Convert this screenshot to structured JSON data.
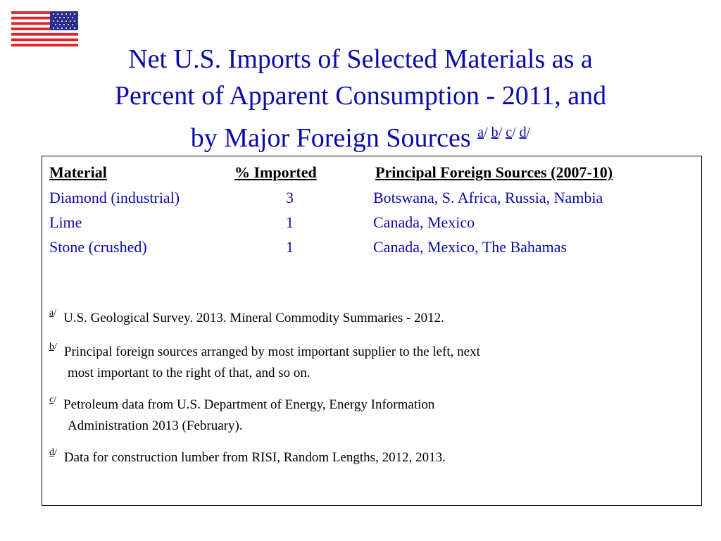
{
  "colors": {
    "title": "#0a0aa8",
    "flag_red": "#d8262c",
    "flag_blue": "#2a2f8f"
  },
  "title": {
    "line1": "Net U.S. Imports of Selected Materials as a",
    "line2": "Percent of Apparent Consumption - 2011, and",
    "line3": "by Major Foreign Sources",
    "footnote_refs": [
      "a",
      "b",
      "c",
      "d"
    ]
  },
  "table": {
    "headers": {
      "material": "Material",
      "imported": "% Imported",
      "sources": "Principal Foreign Sources (2007-10)"
    },
    "rows": [
      {
        "material": "Diamond (industrial)",
        "imported": "3",
        "sources": "Botswana, S. Africa, Russia, Nambia"
      },
      {
        "material": "Lime",
        "imported": "1",
        "sources": "Canada, Mexico"
      },
      {
        "material": "Stone (crushed)",
        "imported": "1",
        "sources": "Canada, Mexico, The Bahamas"
      }
    ]
  },
  "notes": [
    {
      "mark": "a",
      "line1": "U.S. Geological Survey. 2013.  Mineral Commodity Summaries - 2012.",
      "line2": ""
    },
    {
      "mark": "b",
      "line1": "Principal foreign sources arranged by most important supplier to the left, next",
      "line2": "most important to the right of that, and so on."
    },
    {
      "mark": "c",
      "line1": "Petroleum data from U.S. Department of Energy, Energy Information",
      "line2": "Administration 2013 (February)."
    },
    {
      "mark": "d",
      "line1": "Data for construction lumber from RISI, Random Lengths, 2012, 2013.",
      "line2": ""
    }
  ]
}
